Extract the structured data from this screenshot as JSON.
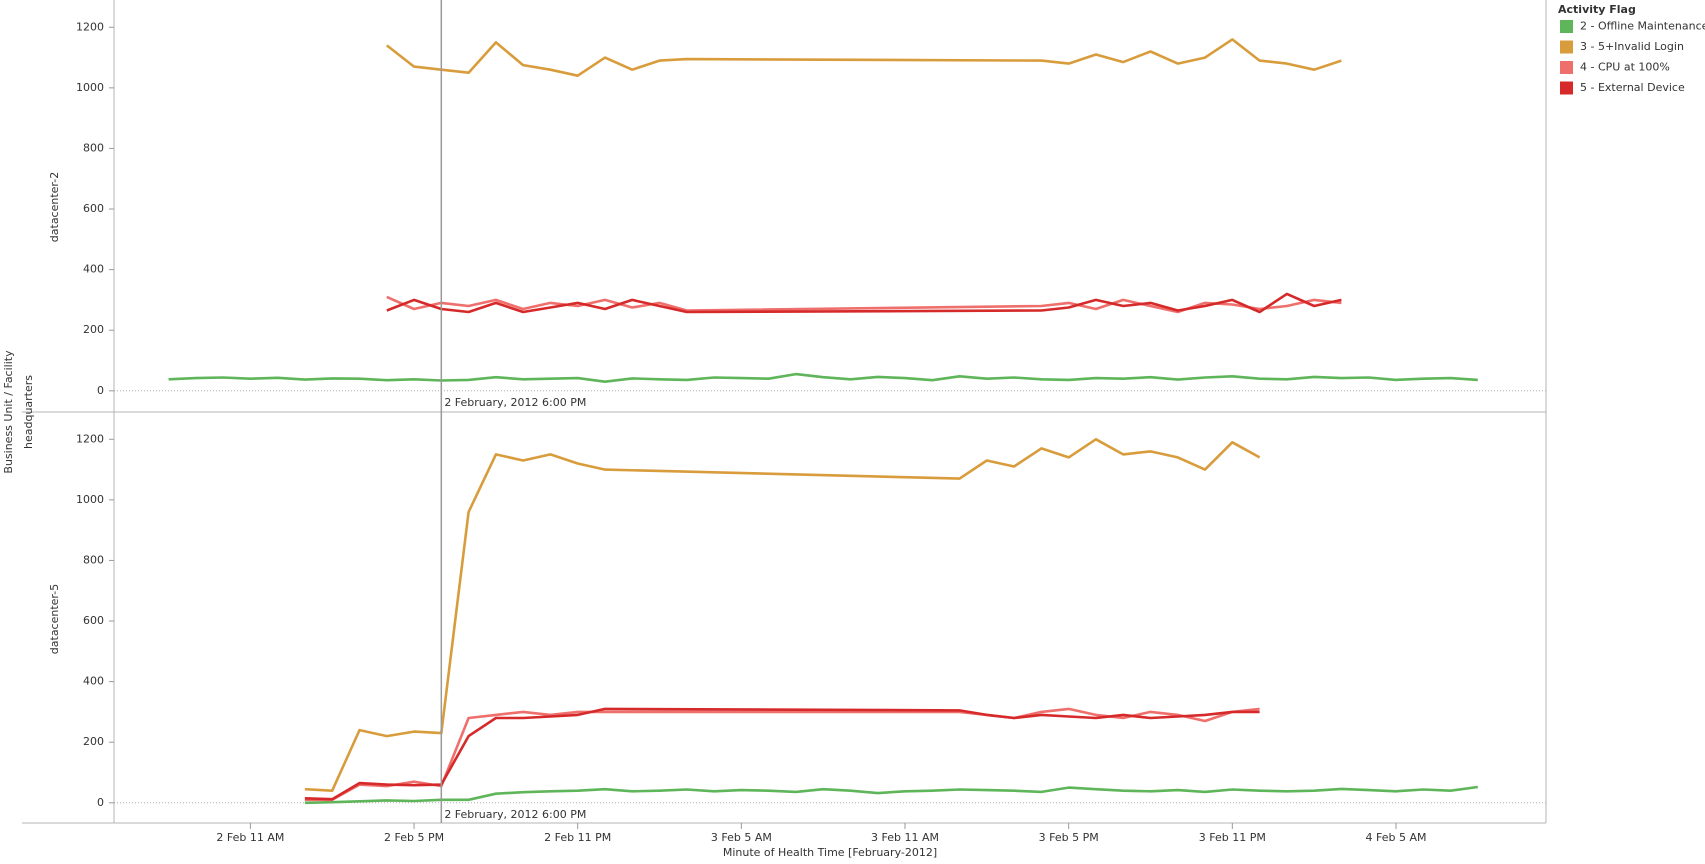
{
  "chart_data": {
    "type": "line",
    "x_label": "Minute of Health Time [February-2012]",
    "y_label": "Business Unit / Facility",
    "facet_label": "headquarters",
    "legend_title": "Activity Flag",
    "series": [
      {
        "name": "2 - Offline Maintenance",
        "color": "#5fb55a"
      },
      {
        "name": "3 - 5+Invalid Login",
        "color": "#d89c3c"
      },
      {
        "name": "4 - CPU at 100%",
        "color": "#ef6f6c"
      },
      {
        "name": "5 - External Device",
        "color": "#d62a2a"
      }
    ],
    "xlim": [
      "2012-02-02T06:00",
      "2012-02-04T10:30"
    ],
    "xticks": [
      {
        "value": "2012-02-02T11:00",
        "label": "2 Feb 11 AM"
      },
      {
        "value": "2012-02-02T17:00",
        "label": "2 Feb 5 PM"
      },
      {
        "value": "2012-02-02T23:00",
        "label": "2 Feb 11 PM"
      },
      {
        "value": "2012-02-03T05:00",
        "label": "3 Feb 5 AM"
      },
      {
        "value": "2012-02-03T11:00",
        "label": "3 Feb 11 AM"
      },
      {
        "value": "2012-02-03T17:00",
        "label": "3 Feb 5 PM"
      },
      {
        "value": "2012-02-03T23:00",
        "label": "3 Feb 11 PM"
      },
      {
        "value": "2012-02-04T05:00",
        "label": "4 Feb 5 AM"
      }
    ],
    "ylim": [
      -70,
      1290
    ],
    "yticks": [
      0,
      200,
      400,
      600,
      800,
      1000,
      1200
    ],
    "reference": {
      "x": "2012-02-02T18:00",
      "label": "2 February, 2012 6:00 PM"
    },
    "panels": [
      {
        "label": "datacenter-2",
        "series": [
          {
            "x": [
              "2012-02-02T08:00",
              "2012-02-02T09:00",
              "2012-02-02T10:00",
              "2012-02-02T11:00",
              "2012-02-02T12:00",
              "2012-02-02T13:00",
              "2012-02-02T14:00",
              "2012-02-02T15:00",
              "2012-02-02T16:00",
              "2012-02-02T17:00",
              "2012-02-02T18:00",
              "2012-02-02T19:00",
              "2012-02-02T20:00",
              "2012-02-02T21:00",
              "2012-02-02T22:00",
              "2012-02-02T23:00",
              "2012-02-03T00:00",
              "2012-02-03T01:00",
              "2012-02-03T02:00",
              "2012-02-03T03:00",
              "2012-02-03T04:00",
              "2012-02-03T05:00",
              "2012-02-03T06:00",
              "2012-02-03T07:00",
              "2012-02-03T08:00",
              "2012-02-03T09:00",
              "2012-02-03T10:00",
              "2012-02-03T11:00",
              "2012-02-03T12:00",
              "2012-02-03T13:00",
              "2012-02-03T14:00",
              "2012-02-03T15:00",
              "2012-02-03T16:00",
              "2012-02-03T17:00",
              "2012-02-03T18:00",
              "2012-02-03T19:00",
              "2012-02-03T20:00",
              "2012-02-03T21:00",
              "2012-02-03T22:00",
              "2012-02-03T23:00",
              "2012-02-04T00:00",
              "2012-02-04T01:00",
              "2012-02-04T02:00",
              "2012-02-04T03:00",
              "2012-02-04T04:00",
              "2012-02-04T05:00",
              "2012-02-04T06:00",
              "2012-02-04T07:00",
              "2012-02-04T08:00"
            ],
            "values": [
              38,
              42,
              44,
              40,
              43,
              37,
              41,
              40,
              35,
              38,
              34,
              36,
              45,
              38,
              40,
              42,
              30,
              41,
              38,
              36,
              44,
              42,
              40,
              55,
              45,
              38,
              46,
              42,
              35,
              48,
              40,
              44,
              38,
              36,
              42,
              40,
              45,
              37,
              44,
              48,
              40,
              38,
              46,
              42,
              44,
              36,
              40,
              42,
              36
            ]
          },
          {
            "x": [
              "2012-02-02T16:00",
              "2012-02-02T17:00",
              "2012-02-02T18:00",
              "2012-02-02T19:00",
              "2012-02-02T20:00",
              "2012-02-02T21:00",
              "2012-02-02T22:00",
              "2012-02-02T23:00",
              "2012-02-03T00:00",
              "2012-02-03T01:00",
              "2012-02-03T02:00",
              "2012-02-03T03:00",
              "2012-02-03T16:00",
              "2012-02-03T17:00",
              "2012-02-03T18:00",
              "2012-02-03T19:00",
              "2012-02-03T20:00",
              "2012-02-03T21:00",
              "2012-02-03T22:00",
              "2012-02-03T23:00",
              "2012-02-04T00:00",
              "2012-02-04T01:00",
              "2012-02-04T02:00",
              "2012-02-04T03:00"
            ],
            "values": [
              1140,
              1070,
              1060,
              1050,
              1150,
              1075,
              1060,
              1040,
              1100,
              1060,
              1090,
              1095,
              1090,
              1080,
              1110,
              1085,
              1120,
              1080,
              1100,
              1160,
              1090,
              1080,
              1060,
              1090
            ]
          },
          {
            "x": [
              "2012-02-02T16:00",
              "2012-02-02T17:00",
              "2012-02-02T18:00",
              "2012-02-02T19:00",
              "2012-02-02T20:00",
              "2012-02-02T21:00",
              "2012-02-02T22:00",
              "2012-02-02T23:00",
              "2012-02-03T00:00",
              "2012-02-03T01:00",
              "2012-02-03T02:00",
              "2012-02-03T03:00",
              "2012-02-03T16:00",
              "2012-02-03T17:00",
              "2012-02-03T18:00",
              "2012-02-03T19:00",
              "2012-02-03T20:00",
              "2012-02-03T21:00",
              "2012-02-03T22:00",
              "2012-02-03T23:00",
              "2012-02-04T00:00",
              "2012-02-04T01:00",
              "2012-02-04T02:00",
              "2012-02-04T03:00"
            ],
            "values": [
              310,
              270,
              290,
              280,
              300,
              270,
              290,
              280,
              300,
              275,
              290,
              265,
              280,
              290,
              270,
              300,
              280,
              260,
              290,
              285,
              270,
              280,
              300,
              290
            ]
          },
          {
            "x": [
              "2012-02-02T16:00",
              "2012-02-02T17:00",
              "2012-02-02T18:00",
              "2012-02-02T19:00",
              "2012-02-02T20:00",
              "2012-02-02T21:00",
              "2012-02-02T22:00",
              "2012-02-02T23:00",
              "2012-02-03T00:00",
              "2012-02-03T01:00",
              "2012-02-03T02:00",
              "2012-02-03T03:00",
              "2012-02-03T16:00",
              "2012-02-03T17:00",
              "2012-02-03T18:00",
              "2012-02-03T19:00",
              "2012-02-03T20:00",
              "2012-02-03T21:00",
              "2012-02-03T22:00",
              "2012-02-03T23:00",
              "2012-02-04T00:00",
              "2012-02-04T01:00",
              "2012-02-04T02:00",
              "2012-02-04T03:00"
            ],
            "values": [
              265,
              300,
              270,
              260,
              290,
              260,
              275,
              290,
              270,
              300,
              280,
              260,
              265,
              275,
              300,
              280,
              290,
              265,
              280,
              300,
              260,
              320,
              280,
              300
            ]
          }
        ]
      },
      {
        "label": "datacenter-5",
        "series": [
          {
            "x": [
              "2012-02-02T13:00",
              "2012-02-02T14:00",
              "2012-02-02T15:00",
              "2012-02-02T16:00",
              "2012-02-02T17:00",
              "2012-02-02T18:00",
              "2012-02-02T19:00",
              "2012-02-02T20:00",
              "2012-02-02T21:00",
              "2012-02-02T22:00",
              "2012-02-02T23:00",
              "2012-02-03T00:00",
              "2012-02-03T01:00",
              "2012-02-03T02:00",
              "2012-02-03T03:00",
              "2012-02-03T04:00",
              "2012-02-03T05:00",
              "2012-02-03T06:00",
              "2012-02-03T07:00",
              "2012-02-03T08:00",
              "2012-02-03T09:00",
              "2012-02-03T10:00",
              "2012-02-03T11:00",
              "2012-02-03T12:00",
              "2012-02-03T13:00",
              "2012-02-03T14:00",
              "2012-02-03T15:00",
              "2012-02-03T16:00",
              "2012-02-03T17:00",
              "2012-02-03T18:00",
              "2012-02-03T19:00",
              "2012-02-03T20:00",
              "2012-02-03T21:00",
              "2012-02-03T22:00",
              "2012-02-03T23:00",
              "2012-02-04T00:00",
              "2012-02-04T01:00",
              "2012-02-04T02:00",
              "2012-02-04T03:00",
              "2012-02-04T04:00",
              "2012-02-04T05:00",
              "2012-02-04T06:00",
              "2012-02-04T07:00",
              "2012-02-04T08:00"
            ],
            "values": [
              0,
              2,
              5,
              8,
              6,
              10,
              10,
              30,
              35,
              38,
              40,
              45,
              38,
              40,
              44,
              38,
              42,
              40,
              36,
              45,
              40,
              32,
              38,
              40,
              44,
              42,
              40,
              36,
              50,
              45,
              40,
              38,
              42,
              36,
              44,
              40,
              38,
              40,
              46,
              42,
              38,
              44,
              40,
              52
            ]
          },
          {
            "x": [
              "2012-02-02T13:00",
              "2012-02-02T14:00",
              "2012-02-02T15:00",
              "2012-02-02T16:00",
              "2012-02-02T17:00",
              "2012-02-02T18:00",
              "2012-02-02T19:00",
              "2012-02-02T20:00",
              "2012-02-02T21:00",
              "2012-02-02T22:00",
              "2012-02-02T23:00",
              "2012-02-03T00:00",
              "2012-02-03T13:00",
              "2012-02-03T14:00",
              "2012-02-03T15:00",
              "2012-02-03T16:00",
              "2012-02-03T17:00",
              "2012-02-03T18:00",
              "2012-02-03T19:00",
              "2012-02-03T20:00",
              "2012-02-03T21:00",
              "2012-02-03T22:00",
              "2012-02-03T23:00",
              "2012-02-04T00:00"
            ],
            "values": [
              45,
              40,
              240,
              220,
              235,
              230,
              960,
              1150,
              1130,
              1150,
              1120,
              1100,
              1070,
              1130,
              1110,
              1170,
              1140,
              1200,
              1150,
              1160,
              1140,
              1100,
              1190,
              1140
            ]
          },
          {
            "x": [
              "2012-02-02T13:00",
              "2012-02-02T14:00",
              "2012-02-02T15:00",
              "2012-02-02T16:00",
              "2012-02-02T17:00",
              "2012-02-02T18:00",
              "2012-02-02T19:00",
              "2012-02-02T20:00",
              "2012-02-02T21:00",
              "2012-02-02T22:00",
              "2012-02-02T23:00",
              "2012-02-03T00:00",
              "2012-02-03T13:00",
              "2012-02-03T14:00",
              "2012-02-03T15:00",
              "2012-02-03T16:00",
              "2012-02-03T17:00",
              "2012-02-03T18:00",
              "2012-02-03T19:00",
              "2012-02-03T20:00",
              "2012-02-03T21:00",
              "2012-02-03T22:00",
              "2012-02-03T23:00",
              "2012-02-04T00:00"
            ],
            "values": [
              10,
              10,
              60,
              55,
              70,
              55,
              280,
              290,
              300,
              290,
              300,
              300,
              300,
              290,
              280,
              300,
              310,
              290,
              280,
              300,
              290,
              270,
              300,
              310
            ]
          },
          {
            "x": [
              "2012-02-02T13:00",
              "2012-02-02T14:00",
              "2012-02-02T15:00",
              "2012-02-02T16:00",
              "2012-02-02T17:00",
              "2012-02-02T18:00",
              "2012-02-02T19:00",
              "2012-02-02T20:00",
              "2012-02-02T21:00",
              "2012-02-02T22:00",
              "2012-02-02T23:00",
              "2012-02-03T00:00",
              "2012-02-03T13:00",
              "2012-02-03T14:00",
              "2012-02-03T15:00",
              "2012-02-03T16:00",
              "2012-02-03T17:00",
              "2012-02-03T18:00",
              "2012-02-03T19:00",
              "2012-02-03T20:00",
              "2012-02-03T21:00",
              "2012-02-03T22:00",
              "2012-02-03T23:00",
              "2012-02-04T00:00"
            ],
            "values": [
              15,
              12,
              65,
              60,
              58,
              60,
              220,
              280,
              280,
              285,
              290,
              310,
              305,
              290,
              280,
              290,
              285,
              280,
              290,
              280,
              285,
              290,
              300,
              300
            ]
          }
        ]
      }
    ]
  }
}
